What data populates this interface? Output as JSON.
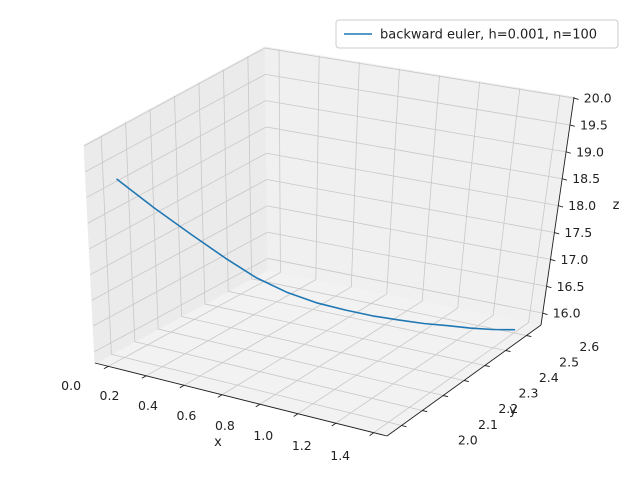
{
  "chart_data": {
    "type": "line3d",
    "xlabel": "x",
    "ylabel": "y",
    "zlabel": "z",
    "xlim": [
      -0.07,
      1.47
    ],
    "ylim": [
      1.93,
      2.67
    ],
    "zlim": [
      15.78,
      20.02
    ],
    "xticks": [
      "0.0",
      "0.2",
      "0.4",
      "0.6",
      "0.8",
      "1.0",
      "1.2",
      "1.4"
    ],
    "yticks": [
      "2.0",
      "2.1",
      "2.2",
      "2.3",
      "2.4",
      "2.5",
      "2.6"
    ],
    "zticks": [
      "16.0",
      "16.5",
      "17.0",
      "17.5",
      "18.0",
      "18.5",
      "19.0",
      "19.5",
      "20.0"
    ],
    "grid": true,
    "legend_position": "top-right",
    "series": [
      {
        "name": "backward euler, h=0.001, n=100",
        "color": "#1f77b4",
        "points": [
          {
            "x": 0.0,
            "y": 2.0,
            "z": 19.22
          },
          {
            "x": 0.1,
            "y": 2.07,
            "z": 18.55
          },
          {
            "x": 0.2,
            "y": 2.14,
            "z": 17.94
          },
          {
            "x": 0.3,
            "y": 2.2,
            "z": 17.42
          },
          {
            "x": 0.4,
            "y": 2.25,
            "z": 17.0
          },
          {
            "x": 0.5,
            "y": 2.3,
            "z": 16.68
          },
          {
            "x": 0.6,
            "y": 2.35,
            "z": 16.43
          },
          {
            "x": 0.7,
            "y": 2.4,
            "z": 16.24
          },
          {
            "x": 0.8,
            "y": 2.44,
            "z": 16.1
          },
          {
            "x": 0.9,
            "y": 2.48,
            "z": 15.99
          },
          {
            "x": 1.0,
            "y": 2.51,
            "z": 15.92
          },
          {
            "x": 1.1,
            "y": 2.54,
            "z": 15.87
          },
          {
            "x": 1.2,
            "y": 2.56,
            "z": 15.84
          },
          {
            "x": 1.3,
            "y": 2.58,
            "z": 15.83
          },
          {
            "x": 1.4,
            "y": 2.6,
            "z": 15.84
          }
        ]
      }
    ]
  }
}
